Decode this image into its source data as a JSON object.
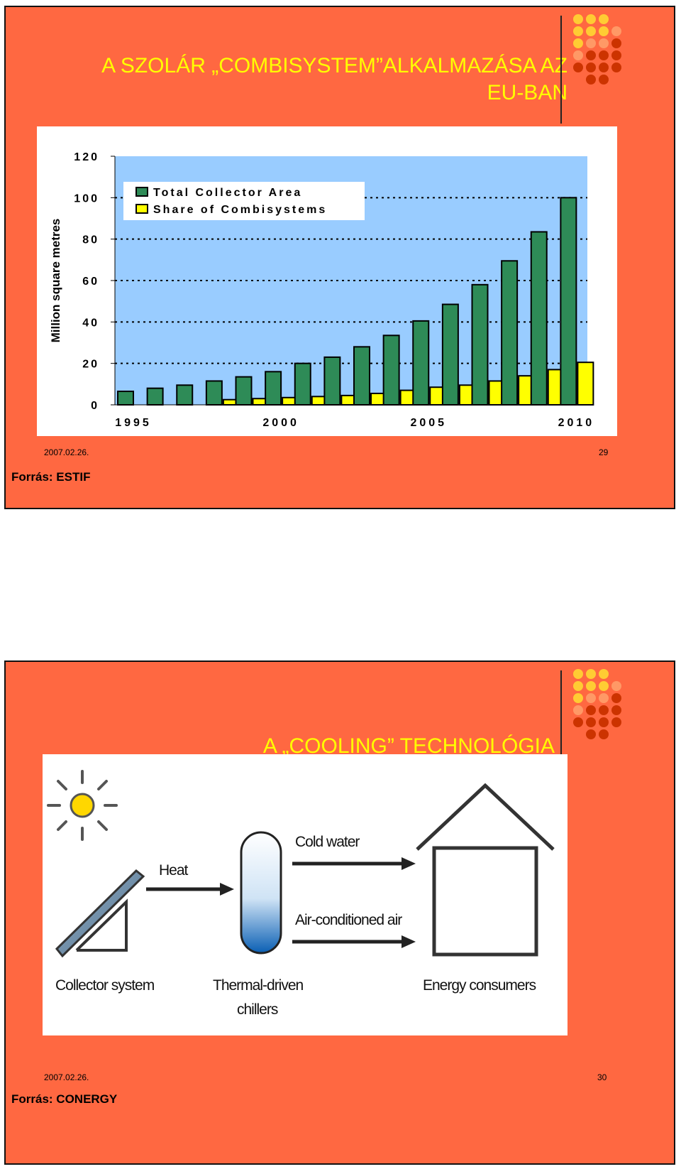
{
  "slide1": {
    "title_line1": "A SZOLÁR „COMBISYSTEM”ALKALMAZÁSA AZ",
    "title_line2": "EU-BAN",
    "date": "2007.02.26.",
    "page_number": "29",
    "source": "Forrás: ESTIF"
  },
  "slide2": {
    "title": "A „COOLING” TECHNOLÓGIA",
    "date": "2007.02.26.",
    "page_number": "30",
    "source": "Forrás: CONERGY"
  },
  "diagram": {
    "heat_label": "Heat",
    "cold_water_label": "Cold water",
    "air_label": "Air-conditioned air",
    "collector_label": "Collector system",
    "chillers_label_1": "Thermal-driven",
    "chillers_label_2": "chillers",
    "consumers_label": "Energy consumers"
  },
  "colors": {
    "slide_bg": "#ff6841",
    "title": "#ffff00",
    "plot_bg": "#99ccff",
    "total_bar": "#2e8b57",
    "combi_bar": "#ffff00"
  },
  "chart_data": {
    "type": "bar",
    "title": "",
    "xlabel": "",
    "ylabel": "Million square metres",
    "ylim": [
      0,
      120
    ],
    "yticks": [
      0,
      20,
      40,
      60,
      80,
      100,
      120
    ],
    "x_tick_labels": [
      "1995",
      "2000",
      "2005",
      "2010"
    ],
    "categories": [
      "1995",
      "1996",
      "1997",
      "1998",
      "1999",
      "2000",
      "2001",
      "2002",
      "2003",
      "2004",
      "2005",
      "2006",
      "2007",
      "2008",
      "2009",
      "2010"
    ],
    "legend_position": "top-left",
    "grid": "dotted horizontal",
    "series": [
      {
        "name": "Total Collector Area",
        "color": "#2e8b57",
        "values": [
          6.5,
          8,
          9.5,
          11.5,
          13.5,
          16,
          20,
          23,
          28,
          33.5,
          40.5,
          48.5,
          58,
          69.5,
          83.5,
          100
        ]
      },
      {
        "name": "Share of Combisystems",
        "color": "#ffff00",
        "values": [
          0,
          0,
          0,
          2.5,
          3,
          3.5,
          4,
          4.5,
          5.5,
          7,
          8.5,
          9.5,
          11.5,
          14,
          17,
          20.5
        ]
      }
    ]
  }
}
